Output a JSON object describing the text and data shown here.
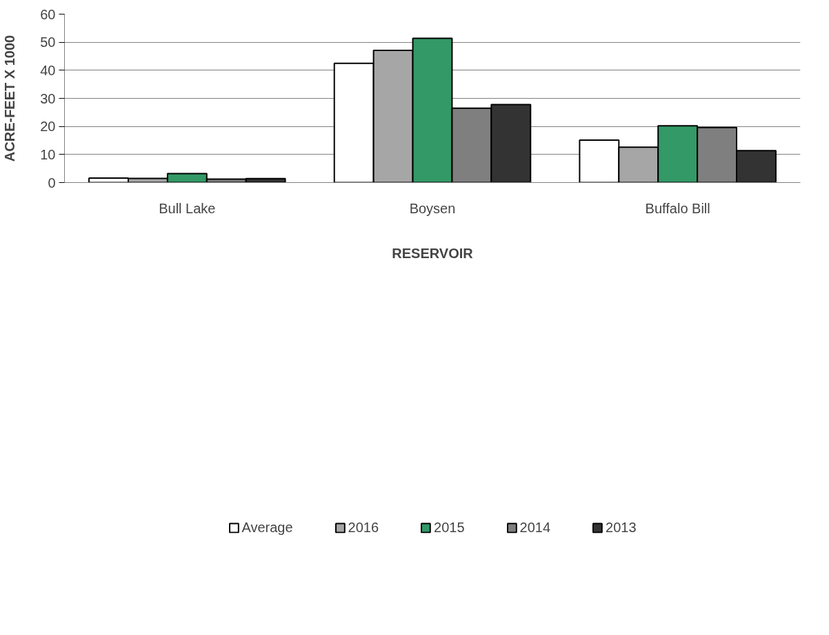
{
  "chart_data": {
    "type": "bar",
    "xlabel": "RESERVOIR",
    "ylabel": "ACRE-FEET X 1000",
    "categories": [
      "Bull Lake",
      "Boysen",
      "Buffalo Bill"
    ],
    "series": [
      {
        "name": "Average",
        "color": "#ffffff",
        "values": [
          1.6,
          42.5,
          15.1
        ]
      },
      {
        "name": "2016",
        "color": "#a6a6a6",
        "values": [
          1.5,
          47.1,
          12.6
        ]
      },
      {
        "name": "2015",
        "color": "#339966",
        "values": [
          3.2,
          51.4,
          20.2
        ]
      },
      {
        "name": "2014",
        "color": "#7f7f7f",
        "values": [
          1.2,
          26.5,
          19.6
        ]
      },
      {
        "name": "2013",
        "color": "#333333",
        "values": [
          1.4,
          27.8,
          11.4
        ]
      }
    ],
    "ylim": [
      0,
      60
    ],
    "yticks": [
      0,
      10,
      20,
      30,
      40,
      50,
      60
    ],
    "grid": "y",
    "legend": "bottom"
  }
}
